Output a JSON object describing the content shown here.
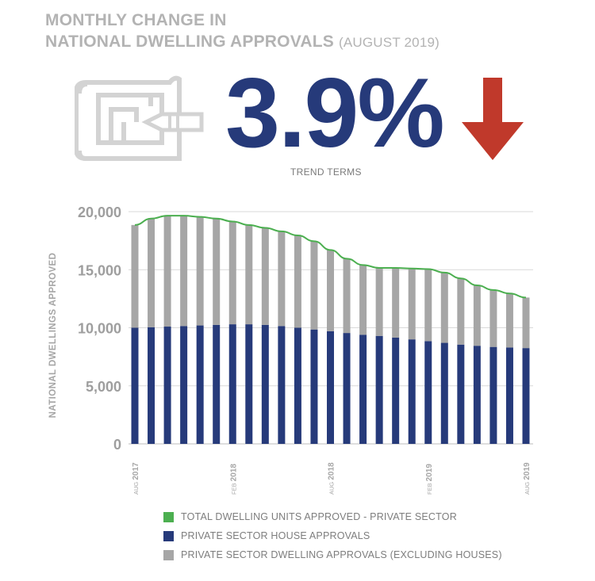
{
  "header": {
    "title_line1": "MONTHLY CHANGE IN",
    "title_line2": "NATIONAL DWELLING APPROVALS",
    "title_period": "(AUGUST 2019)"
  },
  "headline": {
    "value": "3.9%",
    "caption": "TREND TERMS",
    "direction": "down",
    "value_color": "#263a7a",
    "arrow_color": "#c0392b"
  },
  "icons": {
    "plan": "blueprint-plan-icon",
    "arrow": "down-arrow-icon"
  },
  "chart_data": {
    "type": "bar",
    "stacked": true,
    "ylabel": "NATIONAL DWELLINGS APPROVED",
    "ylim": [
      0,
      20000
    ],
    "yticks": [
      {
        "value": 0,
        "label": "0"
      },
      {
        "value": 5000,
        "label": "5,000"
      },
      {
        "value": 10000,
        "label": "10,000"
      },
      {
        "value": 15000,
        "label": "15,000"
      },
      {
        "value": 20000,
        "label": "20,000"
      }
    ],
    "grid": true,
    "bar_count": 25,
    "xticks": [
      {
        "index": 0,
        "month": "AUG",
        "year": "2017"
      },
      {
        "index": 6,
        "month": "FEB",
        "year": "2018"
      },
      {
        "index": 12,
        "month": "AUG",
        "year": "2018"
      },
      {
        "index": 18,
        "month": "FEB",
        "year": "2019"
      },
      {
        "index": 24,
        "month": "AUG",
        "year": "2019"
      }
    ],
    "series": [
      {
        "name": "PRIVATE SECTOR HOUSE APPROVALS",
        "color": "#263a7a",
        "kind": "bar",
        "values": [
          10000,
          10050,
          10100,
          10150,
          10200,
          10250,
          10300,
          10300,
          10250,
          10150,
          10000,
          9850,
          9700,
          9550,
          9400,
          9300,
          9150,
          9000,
          8850,
          8700,
          8550,
          8450,
          8350,
          8300,
          8250
        ]
      },
      {
        "name": "PRIVATE SECTOR DWELLING APPROVALS (EXCLUDING HOUSES)",
        "color": "#a6a6a6",
        "kind": "bar",
        "values": [
          8850,
          9350,
          9550,
          9500,
          9350,
          9150,
          8850,
          8550,
          8350,
          8150,
          7950,
          7600,
          7000,
          6400,
          6000,
          5850,
          6000,
          6100,
          6200,
          6050,
          5700,
          5200,
          4900,
          4650,
          4350
        ]
      },
      {
        "name": "TOTAL DWELLING UNITS APPROVED - PRIVATE SECTOR",
        "color": "#4caf50",
        "kind": "line",
        "values": [
          18850,
          19400,
          19650,
          19650,
          19550,
          19400,
          19150,
          18850,
          18600,
          18300,
          17950,
          17450,
          16700,
          15950,
          15400,
          15150,
          15150,
          15100,
          15050,
          14750,
          14250,
          13650,
          13250,
          12950,
          12600
        ]
      }
    ],
    "legend": [
      {
        "label": "TOTAL DWELLING UNITS APPROVED - PRIVATE SECTOR",
        "color": "#4caf50"
      },
      {
        "label": "PRIVATE SECTOR HOUSE APPROVALS",
        "color": "#263a7a"
      },
      {
        "label": "PRIVATE SECTOR DWELLING APPROVALS (EXCLUDING HOUSES)",
        "color": "#a6a6a6"
      }
    ],
    "legend_position": "bottom"
  }
}
